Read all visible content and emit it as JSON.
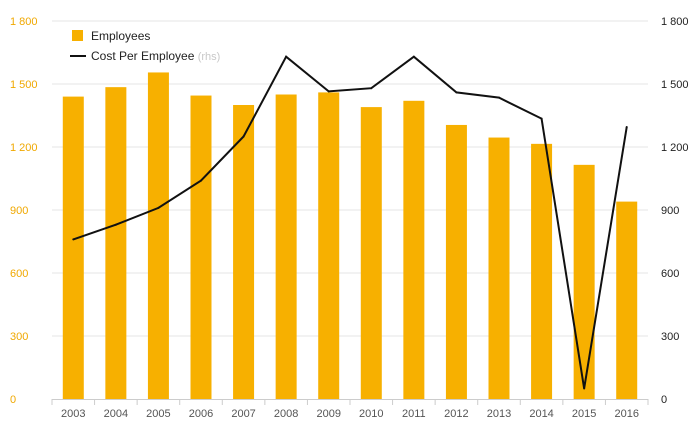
{
  "chart_data": {
    "type": "bar",
    "categories": [
      "2003",
      "2004",
      "2005",
      "2006",
      "2007",
      "2008",
      "2009",
      "2010",
      "2011",
      "2012",
      "2013",
      "2014",
      "2015",
      "2016"
    ],
    "series": [
      {
        "name": "Employees",
        "type": "bar",
        "axis": "left",
        "color": "#f7b000",
        "values": [
          1440,
          1485,
          1555,
          1445,
          1400,
          1450,
          1460,
          1390,
          1420,
          1305,
          1245,
          1215,
          1115,
          940
        ]
      },
      {
        "name": "Cost Per Employee",
        "name_note": "(rhs)",
        "type": "line",
        "axis": "right",
        "color": "#111111",
        "values": [
          760,
          830,
          910,
          1040,
          1250,
          1630,
          1465,
          1480,
          1630,
          1460,
          1435,
          1335,
          50,
          1295
        ]
      }
    ],
    "y_left": {
      "min": 0,
      "max": 1800,
      "ticks": [
        "0",
        "300",
        "600",
        "900",
        "1 200",
        "1 500",
        "1 800"
      ],
      "color": "#f0a800"
    },
    "y_right": {
      "min": 0,
      "max": 1800,
      "ticks": [
        "0",
        "300",
        "600",
        "900",
        "1 200",
        "1 500",
        "1 800"
      ],
      "color": "#222222"
    },
    "grid": true,
    "legend_position": "top-left",
    "colors": {
      "grid": "#e6e6e6",
      "axis": "#cccccc"
    }
  }
}
